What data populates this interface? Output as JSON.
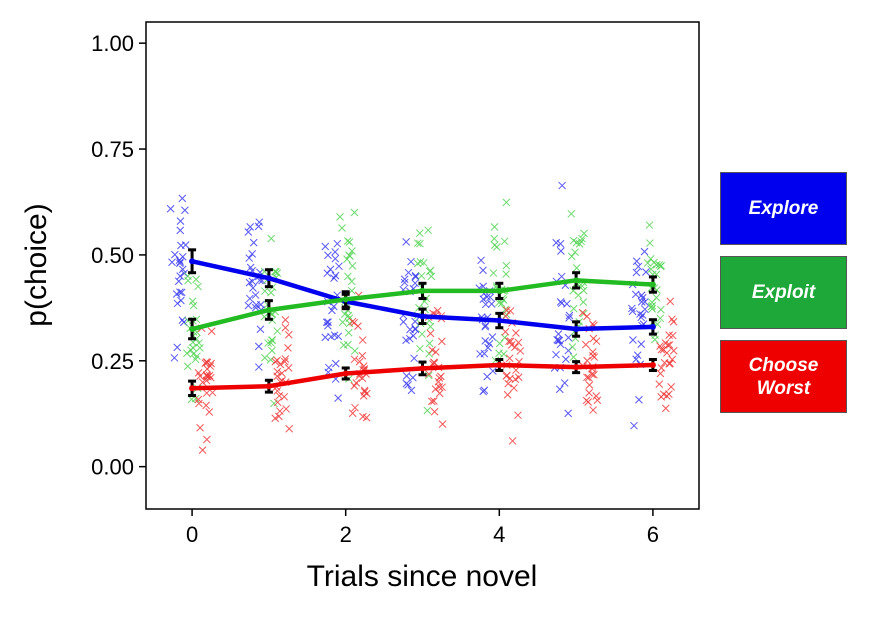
{
  "chart_data": {
    "type": "line",
    "xlabel": "Trials since novel",
    "ylabel": "p(choice)",
    "xlim": [
      -0.6,
      6.6
    ],
    "ylim": [
      -0.1,
      1.05
    ],
    "x_ticks": [
      0,
      2,
      4,
      6
    ],
    "x_tick_labels": [
      "0",
      "2",
      "4",
      "6"
    ],
    "y_ticks": [
      0,
      0.25,
      0.5,
      0.75,
      1.0
    ],
    "y_tick_labels": [
      "0.00",
      "0.25",
      "0.50",
      "0.75",
      "1.00"
    ],
    "grid": false,
    "legend_position": "right",
    "x": [
      0,
      1,
      2,
      3,
      4,
      5,
      6
    ],
    "series": [
      {
        "name": "Explore",
        "color": "#0000ee",
        "values": [
          0.485,
          0.445,
          0.39,
          0.355,
          0.345,
          0.325,
          0.33
        ],
        "error": [
          0.027,
          0.02,
          0.017,
          0.017,
          0.017,
          0.017,
          0.017
        ]
      },
      {
        "name": "Exploit",
        "color": "#22bb22",
        "values": [
          0.325,
          0.37,
          0.395,
          0.415,
          0.415,
          0.44,
          0.43
        ],
        "error": [
          0.023,
          0.022,
          0.018,
          0.018,
          0.018,
          0.018,
          0.018
        ]
      },
      {
        "name": "Choose\nWorst",
        "color": "#ee0000",
        "values": [
          0.185,
          0.19,
          0.22,
          0.232,
          0.24,
          0.235,
          0.24
        ],
        "error": [
          0.017,
          0.014,
          0.013,
          0.015,
          0.013,
          0.013,
          0.013
        ]
      }
    ],
    "scatter_marker": "x",
    "legend_colors": {
      "Explore": "#0000ee",
      "Exploit": "#1ea83a",
      "Choose Worst": "#ee0000"
    }
  }
}
